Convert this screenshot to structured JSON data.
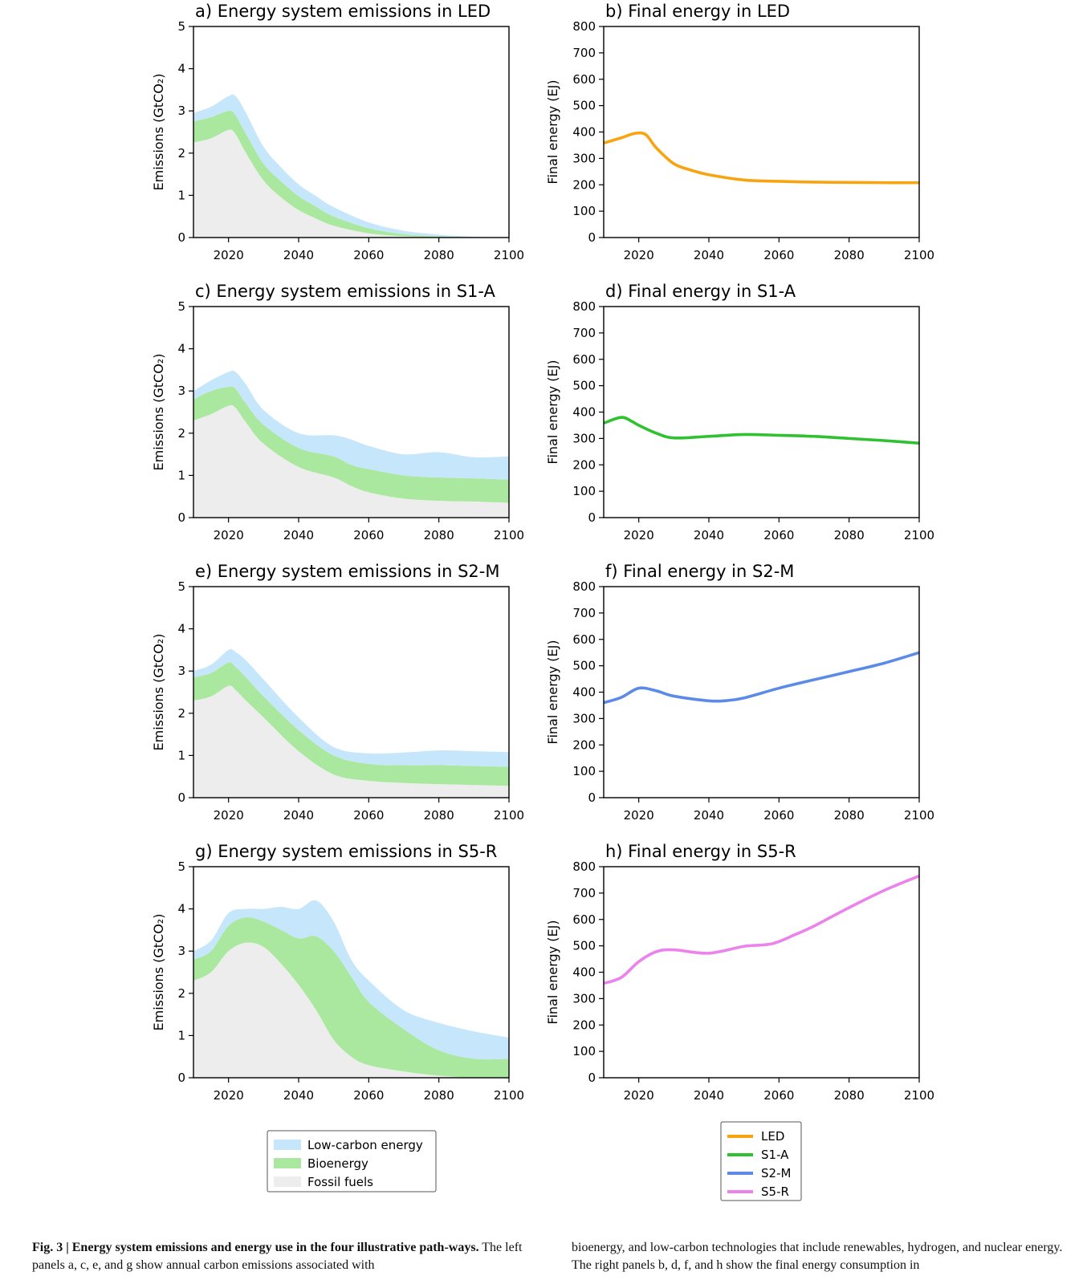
{
  "colors": {
    "low_carbon": "#c6e7fb",
    "bioenergy": "#a9e89e",
    "fossil": "#ededed",
    "LED": "#f8a411",
    "S1-A": "#2fc12f",
    "S2-M": "#5b8be6",
    "S5-R": "#ec82ec"
  },
  "chart_data": [
    {
      "type": "area",
      "stacked": true,
      "title": "a) Energy system emissions in LED",
      "ylabel": "Emissions (GtCO₂)",
      "xlabel": "",
      "xlim": [
        2010,
        2100
      ],
      "ylim": [
        0,
        5
      ],
      "xticks": [
        2020,
        2040,
        2060,
        2080,
        2100
      ],
      "yticks": [
        0,
        1,
        2,
        3,
        4,
        5
      ],
      "x": [
        2010,
        2015,
        2020,
        2022,
        2025,
        2030,
        2035,
        2040,
        2045,
        2050,
        2060,
        2070,
        2080,
        2090,
        2100
      ],
      "series": [
        {
          "name": "Fossil fuels",
          "values": [
            2.25,
            2.35,
            2.55,
            2.45,
            2.0,
            1.35,
            0.95,
            0.65,
            0.45,
            0.28,
            0.1,
            0.03,
            0.01,
            0.0,
            0.0
          ]
        },
        {
          "name": "Bioenergy",
          "values": [
            0.5,
            0.5,
            0.45,
            0.45,
            0.45,
            0.4,
            0.38,
            0.33,
            0.28,
            0.22,
            0.12,
            0.05,
            0.02,
            0.01,
            0.0
          ]
        },
        {
          "name": "Low-carbon energy",
          "values": [
            0.2,
            0.25,
            0.35,
            0.45,
            0.5,
            0.4,
            0.33,
            0.28,
            0.25,
            0.22,
            0.14,
            0.08,
            0.04,
            0.01,
            0.0
          ]
        }
      ]
    },
    {
      "type": "line",
      "title": "b) Final energy in LED",
      "ylabel": "Final energy (EJ)",
      "xlabel": "",
      "xlim": [
        2010,
        2100
      ],
      "ylim": [
        0,
        800
      ],
      "xticks": [
        2020,
        2040,
        2060,
        2080,
        2100
      ],
      "yticks": [
        0,
        100,
        200,
        300,
        400,
        500,
        600,
        700,
        800
      ],
      "x": [
        2010,
        2015,
        2019,
        2022,
        2025,
        2030,
        2035,
        2040,
        2050,
        2060,
        2070,
        2080,
        2090,
        2100
      ],
      "series": [
        {
          "name": "LED",
          "color_key": "LED",
          "values": [
            358,
            378,
            395,
            390,
            340,
            280,
            255,
            238,
            218,
            213,
            210,
            209,
            208,
            208
          ]
        }
      ]
    },
    {
      "type": "area",
      "stacked": true,
      "title": "c) Energy system emissions in S1-A",
      "ylabel": "Emissions (GtCO₂)",
      "xlabel": "",
      "xlim": [
        2010,
        2100
      ],
      "ylim": [
        0,
        5
      ],
      "xticks": [
        2020,
        2040,
        2060,
        2080,
        2100
      ],
      "yticks": [
        0,
        1,
        2,
        3,
        4,
        5
      ],
      "x": [
        2010,
        2015,
        2020,
        2022,
        2025,
        2030,
        2040,
        2050,
        2055,
        2060,
        2070,
        2080,
        2090,
        2100
      ],
      "series": [
        {
          "name": "Fossil fuels",
          "values": [
            2.3,
            2.45,
            2.65,
            2.6,
            2.25,
            1.75,
            1.2,
            0.95,
            0.75,
            0.6,
            0.45,
            0.4,
            0.38,
            0.35
          ]
        },
        {
          "name": "Bioenergy",
          "values": [
            0.5,
            0.55,
            0.45,
            0.45,
            0.45,
            0.45,
            0.45,
            0.5,
            0.5,
            0.55,
            0.55,
            0.55,
            0.55,
            0.55
          ]
        },
        {
          "name": "Low-carbon energy",
          "values": [
            0.2,
            0.25,
            0.35,
            0.4,
            0.45,
            0.35,
            0.35,
            0.5,
            0.6,
            0.55,
            0.5,
            0.6,
            0.5,
            0.55
          ]
        }
      ]
    },
    {
      "type": "line",
      "title": "d) Final energy in S1-A",
      "ylabel": "Final energy (EJ)",
      "xlabel": "",
      "xlim": [
        2010,
        2100
      ],
      "ylim": [
        0,
        800
      ],
      "xticks": [
        2020,
        2040,
        2060,
        2080,
        2100
      ],
      "yticks": [
        0,
        100,
        200,
        300,
        400,
        500,
        600,
        700,
        800
      ],
      "x": [
        2010,
        2015,
        2018,
        2020,
        2025,
        2030,
        2040,
        2050,
        2060,
        2070,
        2080,
        2090,
        2100
      ],
      "series": [
        {
          "name": "S1-A",
          "color_key": "S1-A",
          "values": [
            358,
            380,
            365,
            350,
            320,
            302,
            308,
            315,
            312,
            308,
            300,
            292,
            282
          ]
        }
      ]
    },
    {
      "type": "area",
      "stacked": true,
      "title": "e) Energy system emissions in S2-M",
      "ylabel": "Emissions (GtCO₂)",
      "xlabel": "",
      "xlim": [
        2010,
        2100
      ],
      "ylim": [
        0,
        5
      ],
      "xticks": [
        2020,
        2040,
        2060,
        2080,
        2100
      ],
      "yticks": [
        0,
        1,
        2,
        3,
        4,
        5
      ],
      "x": [
        2010,
        2015,
        2020,
        2022,
        2025,
        2030,
        2040,
        2050,
        2060,
        2070,
        2080,
        2090,
        2100
      ],
      "series": [
        {
          "name": "Fossil fuels",
          "values": [
            2.3,
            2.4,
            2.65,
            2.55,
            2.3,
            1.9,
            1.1,
            0.55,
            0.4,
            0.35,
            0.32,
            0.3,
            0.28
          ]
        },
        {
          "name": "Bioenergy",
          "values": [
            0.55,
            0.55,
            0.55,
            0.55,
            0.55,
            0.5,
            0.5,
            0.45,
            0.4,
            0.42,
            0.45,
            0.45,
            0.45
          ]
        },
        {
          "name": "Low-carbon energy",
          "values": [
            0.15,
            0.2,
            0.3,
            0.35,
            0.4,
            0.4,
            0.3,
            0.2,
            0.25,
            0.3,
            0.35,
            0.35,
            0.35
          ]
        }
      ]
    },
    {
      "type": "line",
      "title": "f) Final energy in S2-M",
      "ylabel": "Final energy (EJ)",
      "xlabel": "",
      "xlim": [
        2010,
        2100
      ],
      "ylim": [
        0,
        800
      ],
      "xticks": [
        2020,
        2040,
        2060,
        2080,
        2100
      ],
      "yticks": [
        0,
        100,
        200,
        300,
        400,
        500,
        600,
        700,
        800
      ],
      "x": [
        2010,
        2015,
        2020,
        2025,
        2030,
        2040,
        2045,
        2050,
        2060,
        2070,
        2080,
        2090,
        2100
      ],
      "series": [
        {
          "name": "S2-M",
          "color_key": "S2-M",
          "values": [
            360,
            380,
            415,
            405,
            385,
            367,
            368,
            378,
            415,
            447,
            478,
            510,
            550
          ]
        }
      ]
    },
    {
      "type": "area",
      "stacked": true,
      "title": "g) Energy system emissions in S5-R",
      "ylabel": "Emissions (GtCO₂)",
      "xlabel": "",
      "xlim": [
        2010,
        2100
      ],
      "ylim": [
        0,
        5
      ],
      "xticks": [
        2020,
        2040,
        2060,
        2080,
        2100
      ],
      "yticks": [
        0,
        1,
        2,
        3,
        4,
        5
      ],
      "x": [
        2010,
        2015,
        2020,
        2025,
        2030,
        2035,
        2040,
        2045,
        2050,
        2055,
        2060,
        2070,
        2080,
        2090,
        2100
      ],
      "series": [
        {
          "name": "Fossil fuels",
          "values": [
            2.3,
            2.5,
            3.0,
            3.2,
            3.1,
            2.7,
            2.2,
            1.6,
            0.9,
            0.5,
            0.3,
            0.15,
            0.05,
            0.0,
            0.0
          ]
        },
        {
          "name": "Bioenergy",
          "values": [
            0.5,
            0.5,
            0.6,
            0.6,
            0.6,
            0.8,
            1.1,
            1.75,
            2.1,
            1.9,
            1.5,
            1.0,
            0.6,
            0.45,
            0.45
          ]
        },
        {
          "name": "Low-carbon energy",
          "values": [
            0.2,
            0.25,
            0.3,
            0.2,
            0.3,
            0.55,
            0.7,
            0.85,
            0.7,
            0.4,
            0.5,
            0.45,
            0.65,
            0.65,
            0.5
          ]
        }
      ]
    },
    {
      "type": "line",
      "title": "h) Final energy in S5-R",
      "ylabel": "Final energy (EJ)",
      "xlabel": "",
      "xlim": [
        2010,
        2100
      ],
      "ylim": [
        0,
        800
      ],
      "xticks": [
        2020,
        2040,
        2060,
        2080,
        2100
      ],
      "yticks": [
        0,
        100,
        200,
        300,
        400,
        500,
        600,
        700,
        800
      ],
      "x": [
        2010,
        2015,
        2020,
        2025,
        2030,
        2040,
        2050,
        2058,
        2065,
        2070,
        2080,
        2090,
        2100
      ],
      "series": [
        {
          "name": "S5-R",
          "color_key": "S5-R",
          "values": [
            358,
            380,
            440,
            478,
            485,
            472,
            498,
            508,
            545,
            575,
            645,
            710,
            765
          ]
        }
      ]
    }
  ],
  "legend_left": {
    "items": [
      {
        "label": "Low-carbon energy",
        "color_key": "low_carbon"
      },
      {
        "label": "Bioenergy",
        "color_key": "bioenergy"
      },
      {
        "label": "Fossil fuels",
        "color_key": "fossil"
      }
    ]
  },
  "legend_right": {
    "items": [
      {
        "label": "LED",
        "color_key": "LED"
      },
      {
        "label": "S1-A",
        "color_key": "S1-A"
      },
      {
        "label": "S2-M",
        "color_key": "S2-M"
      },
      {
        "label": "S5-R",
        "color_key": "S5-R"
      }
    ]
  },
  "caption": {
    "left_bold": "Fig. 3 | Energy system emissions and energy use in the four illustrative path-ways.",
    "left_text": " The left panels a, c, e, and g show annual carbon emissions associated with",
    "right_text": "bioenergy, and low-carbon technologies that include renewables, hydrogen, and nuclear energy. The right panels b, d, f, and h show the final energy consumption in"
  }
}
